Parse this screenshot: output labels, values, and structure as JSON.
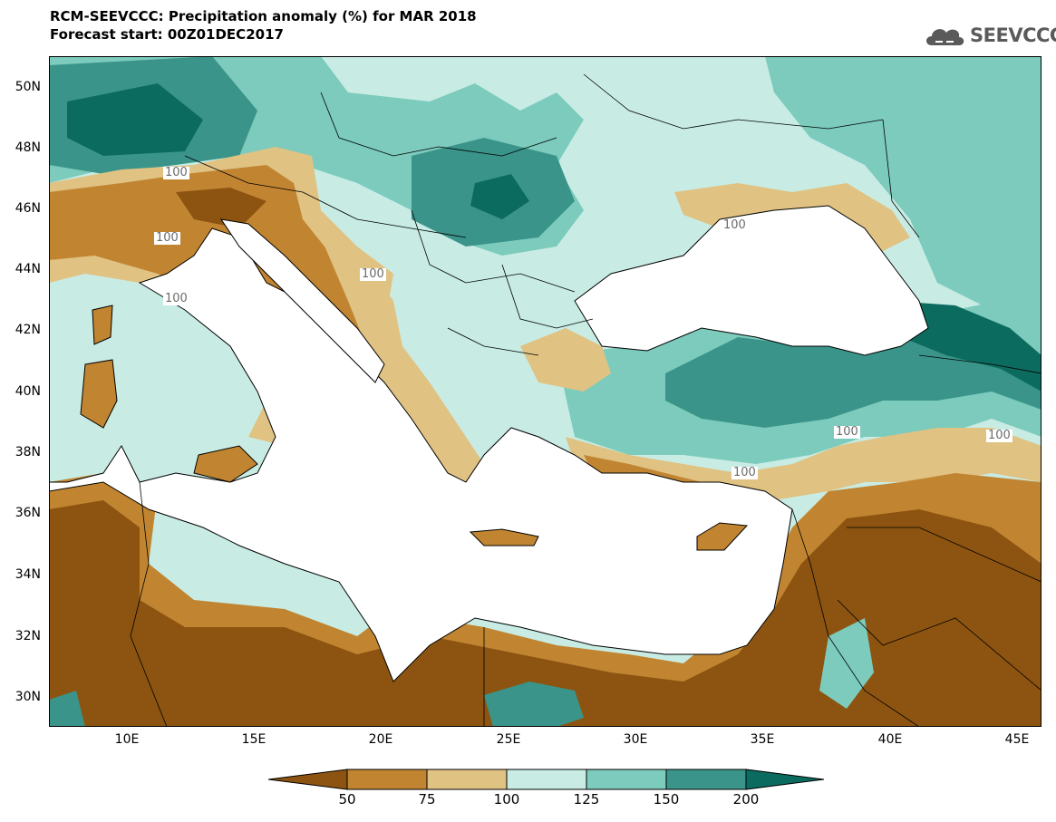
{
  "header": {
    "title": "RCM-SEEVCCC: Precipitation anomaly (%) for MAR 2018",
    "subtitle": "Forecast start: 00Z01DEC2017"
  },
  "logo": {
    "text": "SEEVCCC",
    "icon": "cloud-icon"
  },
  "axes": {
    "lat_labels": [
      "50N",
      "48N",
      "46N",
      "44N",
      "42N",
      "40N",
      "38N",
      "36N",
      "34N",
      "32N",
      "30N"
    ],
    "lon_labels": [
      "10E",
      "15E",
      "20E",
      "25E",
      "30E",
      "35E",
      "40E",
      "45E"
    ]
  },
  "colorbar": {
    "labels": [
      "50",
      "75",
      "100",
      "125",
      "150",
      "200"
    ],
    "colors": [
      "#8c5410",
      "#c18532",
      "#e0c283",
      "#c8ece4",
      "#7ccbbd",
      "#3a948a",
      "#0c6b5f"
    ]
  },
  "contour_label": "100",
  "colors": {
    "very_dry": "#8c5410",
    "dry": "#c18532",
    "slightly_dry": "#e0c283",
    "normal": "#c8ece4",
    "wet": "#7ccbbd",
    "very_wet": "#3a948a",
    "extreme_wet": "#0c6b5f",
    "sea": "#ffffff"
  }
}
